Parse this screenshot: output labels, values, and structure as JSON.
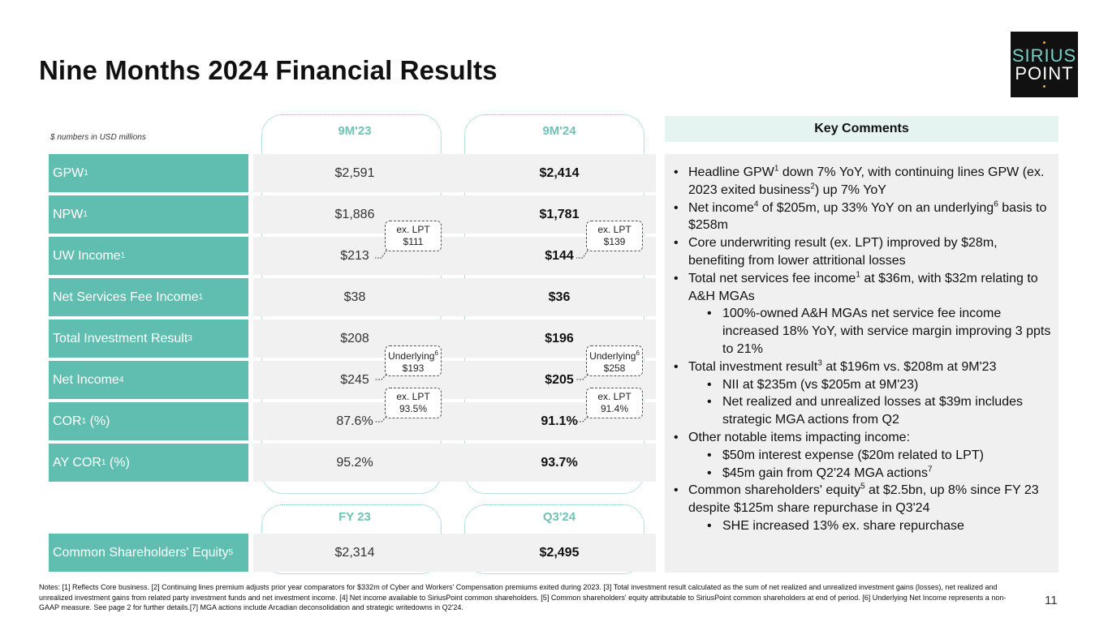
{
  "title": "Nine Months 2024 Financial Results",
  "logo": {
    "line1": "SIRIUS",
    "line2": "POINT"
  },
  "units_note": "$ numbers in USD millions",
  "columns": {
    "prior": "9M'23",
    "current": "9M'24",
    "prior_balance": "FY 23",
    "current_balance": "Q3'24"
  },
  "rows": [
    {
      "label": "GPW",
      "sup": "1",
      "prior": "$2,591",
      "current": "$2,414"
    },
    {
      "label": "NPW",
      "sup": "1",
      "prior": "$1,886",
      "current": "$1,781"
    },
    {
      "label": "UW Income",
      "sup": "1",
      "prior": "$213",
      "current": "$144"
    },
    {
      "label": "Net Services Fee Income",
      "sup": "1",
      "prior": "$38",
      "current": "$36"
    },
    {
      "label": "Total Investment Result",
      "sup": "3",
      "prior": "$208",
      "current": "$196"
    },
    {
      "label": "Net Income",
      "sup": "4",
      "prior": "$245",
      "current": "$205"
    },
    {
      "label": "COR",
      "sup": "1",
      "suffix": " (%)",
      "prior": "87.6%",
      "current": "91.1%"
    },
    {
      "label": "AY COR",
      "sup": "1",
      "suffix": " (%)",
      "prior": "95.2%",
      "current": "93.7%"
    }
  ],
  "equity_row": {
    "label": "Common Shareholders' Equity",
    "sup": "5",
    "prior": "$2,314",
    "current": "$2,495"
  },
  "callouts": {
    "uw_prior": {
      "line1": "ex. LPT",
      "line2": "$111"
    },
    "uw_current": {
      "line1": "ex. LPT",
      "line2": "$139"
    },
    "ni_prior": {
      "line1": "Underlying",
      "sup": "6",
      "line2": "$193"
    },
    "ni_current": {
      "line1": "Underlying",
      "sup": "6",
      "line2": "$258"
    },
    "cor_prior": {
      "line1": "ex. LPT",
      "line2": "93.5%"
    },
    "cor_current": {
      "line1": "ex. LPT",
      "line2": "91.4%"
    }
  },
  "key_comments": {
    "heading": "Key Comments",
    "items": [
      {
        "level": 1,
        "parts": [
          "Headline GPW",
          "1",
          " down 7% YoY, with continuing lines GPW (ex. 2023 exited business",
          "2",
          ") up 7% YoY"
        ]
      },
      {
        "level": 1,
        "parts": [
          "Net income",
          "4",
          " of $205m, up 33% YoY on an underlying",
          "6",
          " basis to $258m"
        ]
      },
      {
        "level": 1,
        "parts": [
          "Core underwriting result (ex. LPT) improved by $28m, benefiting from lower attritional losses"
        ]
      },
      {
        "level": 1,
        "parts": [
          "Total net services fee income",
          "1",
          " at $36m, with $32m relating to A&H MGAs"
        ]
      },
      {
        "level": 2,
        "parts": [
          "100%-owned A&H MGAs net service fee income increased 18% YoY, with service margin improving 3 ppts to 21%"
        ]
      },
      {
        "level": 1,
        "parts": [
          "Total investment result",
          "3",
          " at $196m vs. $208m at 9M'23"
        ]
      },
      {
        "level": 2,
        "parts": [
          "NII at $235m (vs $205m at 9M'23)"
        ]
      },
      {
        "level": 2,
        "parts": [
          "Net realized and unrealized losses at $39m includes strategic MGA actions from Q2"
        ]
      },
      {
        "level": 1,
        "parts": [
          "Other notable items impacting income:"
        ]
      },
      {
        "level": 2,
        "parts": [
          "$50m interest expense ($20m related to LPT)"
        ]
      },
      {
        "level": 2,
        "parts": [
          "$45m gain from Q2'24 MGA actions",
          "7"
        ]
      },
      {
        "level": 1,
        "parts": [
          "Common shareholders' equity",
          "5",
          " at $2.5bn, up 8% since FY 23 despite $125m share repurchase in Q3'24"
        ]
      },
      {
        "level": 2,
        "parts": [
          "SHE increased 13% ex. share repurchase"
        ]
      }
    ]
  },
  "notes": "Notes: [1] Reflects Core business.  [2] Continuing lines premium adjusts prior year comparators for $332m of Cyber and Workers' Compensation premiums exited during 2023. [3] Total investment result calculated as the sum of net realized and unrealized investment gains (losses), net realized and unrealized investment gains from related party investment funds and net investment income. [4] Net income available to SiriusPoint common shareholders. [5] Common shareholders' equity attributable to SiriusPoint common shareholders at end of period. [6] Underlying Net Income represents a non-GAAP measure. See page 2 for further details.[7] MGA actions include Arcadian deconsolidation and strategic writedowns in Q2'24.",
  "page_number": "11"
}
